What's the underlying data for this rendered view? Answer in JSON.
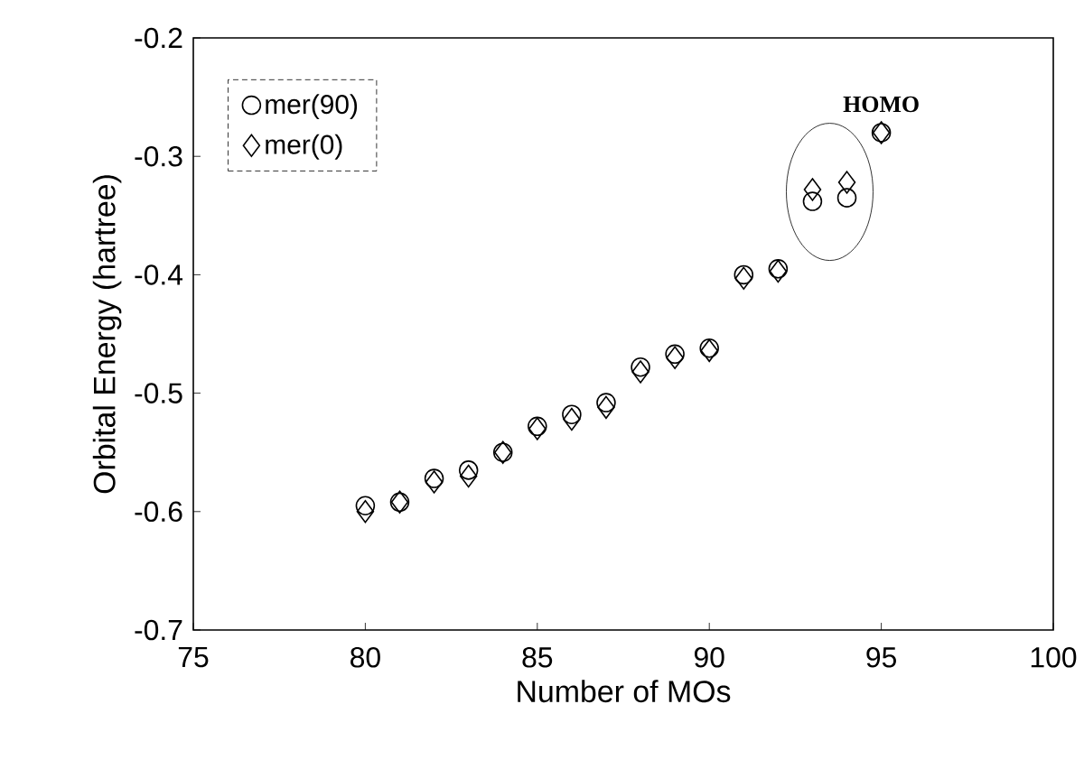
{
  "chart_data": {
    "type": "scatter",
    "xlabel": "Number of MOs",
    "ylabel": "Orbital Energy (hartree)",
    "x": [
      80,
      81,
      82,
      83,
      84,
      85,
      86,
      87,
      88,
      89,
      90,
      91,
      92,
      93,
      94,
      95
    ],
    "series": [
      {
        "name": "mer(90)",
        "color": "#000000",
        "marker": "circle",
        "values": [
          -0.595,
          -0.592,
          -0.572,
          -0.565,
          -0.55,
          -0.528,
          -0.518,
          -0.508,
          -0.478,
          -0.467,
          -0.462,
          -0.4,
          -0.395,
          -0.338,
          -0.335,
          -0.28
        ]
      },
      {
        "name": "mer(0)",
        "color": "#000000",
        "marker": "diamond",
        "values": [
          -0.6,
          -0.592,
          -0.575,
          -0.57,
          -0.55,
          -0.53,
          -0.522,
          -0.512,
          -0.482,
          -0.47,
          -0.464,
          -0.403,
          -0.397,
          -0.328,
          -0.322,
          -0.28
        ]
      }
    ],
    "xlim": [
      75,
      100
    ],
    "ylim": [
      -0.7,
      -0.2
    ],
    "xticks": [
      75,
      80,
      85,
      90,
      95,
      100
    ],
    "yticks": [
      -0.7,
      -0.6,
      -0.5,
      -0.4,
      -0.3,
      -0.2
    ],
    "legend": "top left",
    "grid": false,
    "annotations": [
      {
        "text": "HOMO",
        "x": 95,
        "y": -0.28
      }
    ]
  }
}
